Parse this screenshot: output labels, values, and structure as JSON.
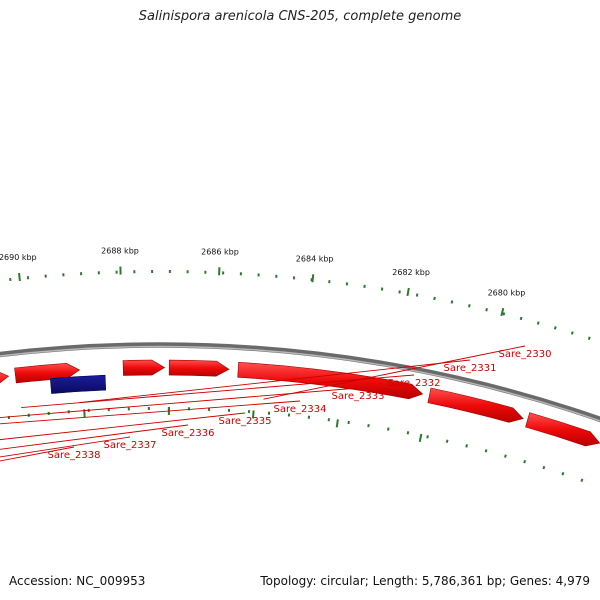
{
  "title": "Salinispora arenicola CNS-205, complete genome",
  "footer": {
    "accession": "Accession: NC_009953",
    "summary": "Topology: circular; Length: 5,786,361 bp; Genes: 4,979"
  },
  "colors": {
    "backbone": "#888888",
    "tick": "#2d7a2d",
    "cds_forward": "#ee1111",
    "cds_reverse_olive": "#6b8e23",
    "cds_blue": "#1515d8",
    "cds_navy": "#101080",
    "cds_cyan": "#19e6f0",
    "cds_steel": "#4f81bd",
    "label": "#cc0000"
  },
  "scale_labels": [
    "2690 kbp",
    "2688 kbp",
    "2686 kbp",
    "2684 kbp",
    "2682 kbp",
    "2680 kbp"
  ],
  "gene_labels": [
    "Sare_2338",
    "Sare_2337",
    "Sare_2336",
    "Sare_2335",
    "Sare_2334",
    "Sare_2333",
    "Sare_2332",
    "Sare_2331",
    "Sare_2330"
  ]
}
